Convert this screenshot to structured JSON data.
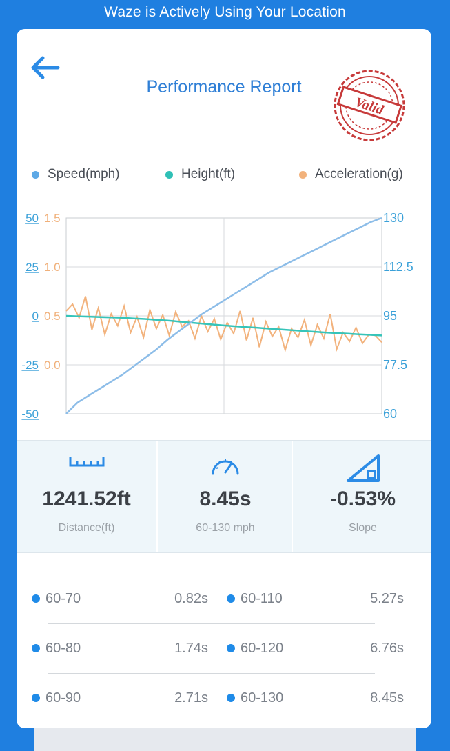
{
  "status_bar": {
    "text": "Waze is Actively Using Your Location"
  },
  "header": {
    "title": "Performance Report",
    "stamp_text": "Valid"
  },
  "legend": [
    {
      "label": "Speed(mph)",
      "color": "#5ea9e6"
    },
    {
      "label": "Height(ft)",
      "color": "#2fc0b6"
    },
    {
      "label": "Acceleration(g)",
      "color": "#f2b27c"
    }
  ],
  "chart_data": {
    "type": "line",
    "axes": {
      "height_ticks": [
        "50",
        "25",
        "0",
        "-25",
        "-50"
      ],
      "acceleration_ticks": [
        "1.5",
        "1.0",
        "0.5",
        "0.0"
      ],
      "speed_ticks": [
        "130",
        "112.5",
        "95",
        "77.5",
        "60"
      ]
    },
    "speed_range": [
      60,
      130
    ],
    "height_range": [
      -50,
      50
    ],
    "acceleration_range": [
      -0.5,
      1.5
    ],
    "series": [
      {
        "name": "Speed(mph)",
        "color": "#8dbde8",
        "values": [
          60.0,
          64.0,
          66.5,
          69.0,
          71.5,
          74.0,
          77.0,
          80.0,
          83.0,
          86.5,
          89.5,
          92.5,
          95.5,
          98.0,
          100.5,
          103.0,
          105.5,
          108.0,
          110.5,
          112.5,
          114.5,
          116.5,
          118.5,
          120.5,
          122.5,
          124.5,
          126.5,
          128.5,
          130.0
        ]
      },
      {
        "name": "Height(ft)",
        "color": "#36c4b9",
        "values": [
          0.0,
          -0.2,
          -0.4,
          -0.6,
          -0.8,
          -1.0,
          -1.3,
          -1.6,
          -2.0,
          -2.4,
          -2.9,
          -3.4,
          -3.9,
          -4.4,
          -4.9,
          -5.3,
          -5.7,
          -6.1,
          -6.5,
          -6.9,
          -7.3,
          -7.7,
          -8.1,
          -8.5,
          -8.8,
          -9.1,
          -9.4,
          -9.7,
          -10.0
        ]
      },
      {
        "name": "Acceleration(g)",
        "color": "#f2b27c",
        "values": [
          0.55,
          0.62,
          0.48,
          0.7,
          0.36,
          0.58,
          0.31,
          0.52,
          0.4,
          0.6,
          0.33,
          0.49,
          0.28,
          0.56,
          0.37,
          0.51,
          0.3,
          0.54,
          0.39,
          0.45,
          0.27,
          0.5,
          0.34,
          0.47,
          0.26,
          0.43,
          0.32,
          0.55,
          0.25,
          0.48,
          0.18,
          0.44,
          0.29,
          0.39,
          0.15,
          0.37,
          0.28,
          0.46,
          0.2,
          0.41,
          0.27,
          0.52,
          0.16,
          0.33,
          0.24,
          0.38,
          0.22,
          0.31,
          0.3,
          0.23
        ]
      }
    ]
  },
  "stats": [
    {
      "value": "1241.52ft",
      "label": "Distance(ft)",
      "icon": "ruler-icon"
    },
    {
      "value": "8.45s",
      "label": "60-130 mph",
      "icon": "speedometer-icon"
    },
    {
      "value": "-0.53%",
      "label": "Slope",
      "icon": "slope-icon"
    }
  ],
  "splits": [
    {
      "range": "60-70",
      "time": "0.82s"
    },
    {
      "range": "60-110",
      "time": "5.27s"
    },
    {
      "range": "60-80",
      "time": "1.74s"
    },
    {
      "range": "60-120",
      "time": "6.76s"
    },
    {
      "range": "60-90",
      "time": "2.71s"
    },
    {
      "range": "60-130",
      "time": "8.45s"
    }
  ]
}
